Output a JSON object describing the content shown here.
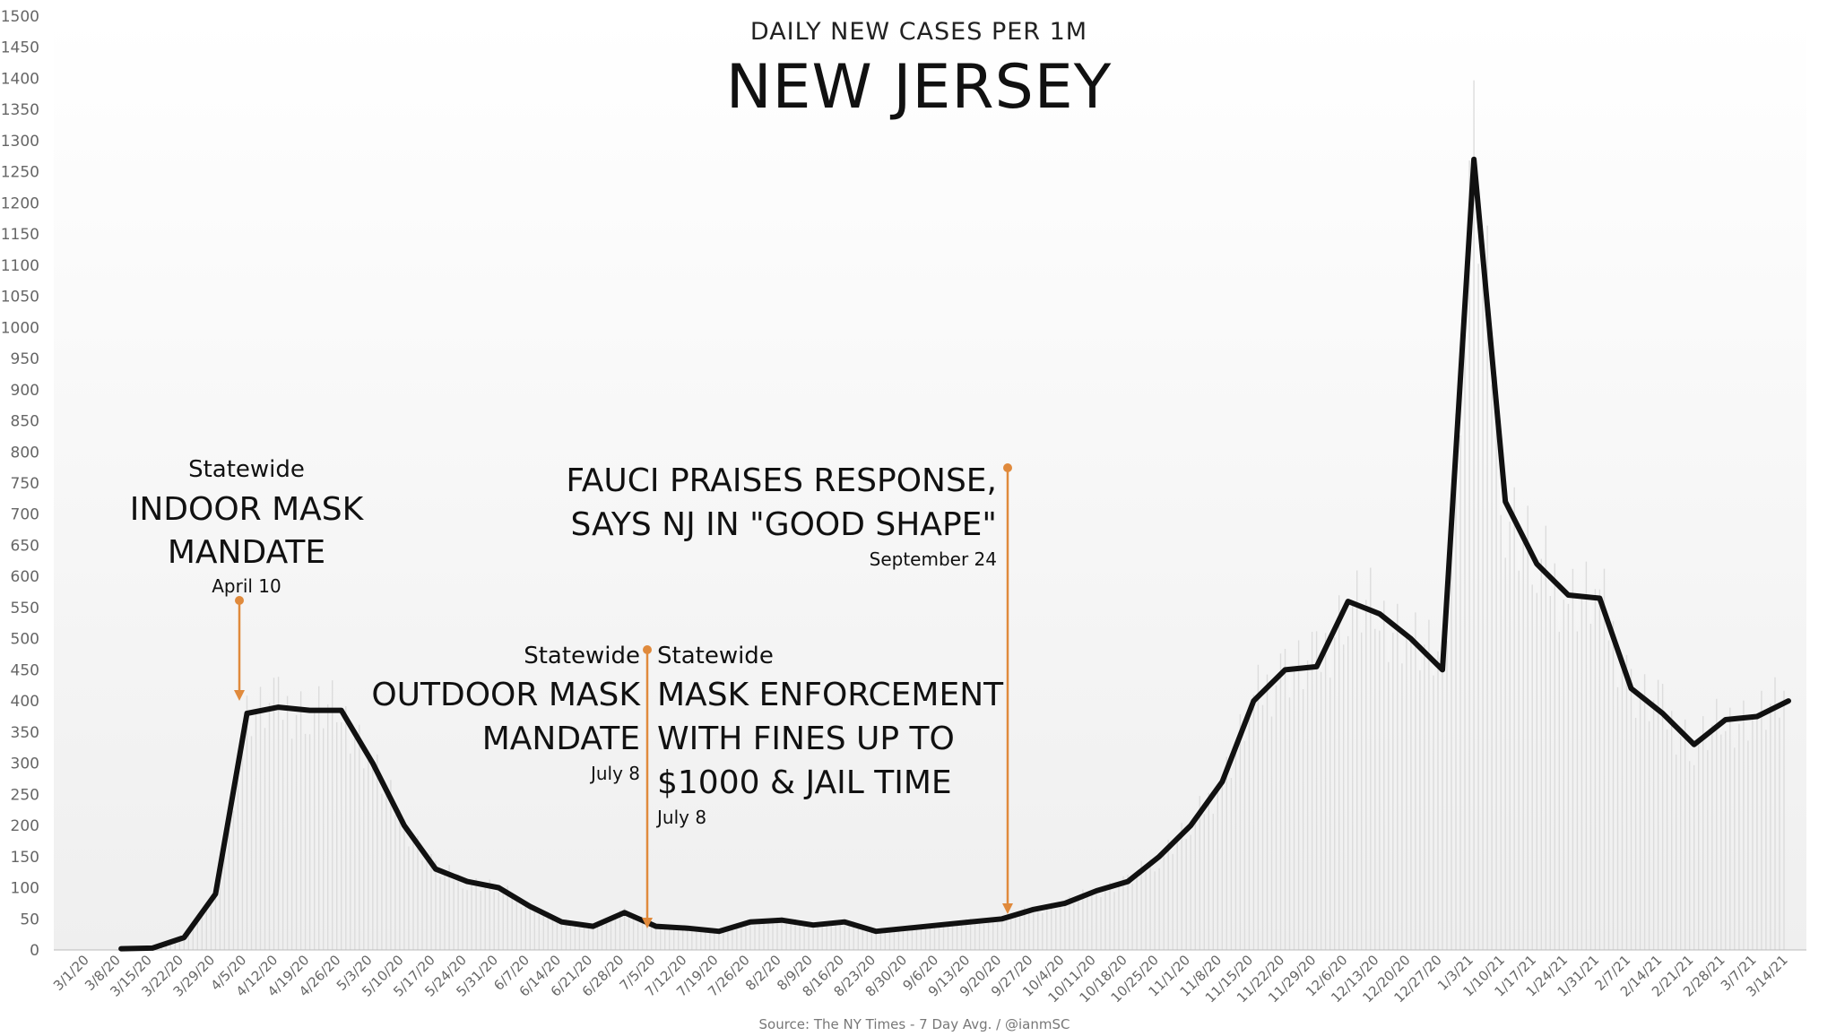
{
  "chart_data": {
    "type": "line",
    "subtitle": "DAILY NEW CASES PER 1M",
    "title": "NEW JERSEY",
    "source": "Source: The NY Times - 7 Day Avg. / @ianmSC",
    "ylim": [
      0,
      1500
    ],
    "y_ticks": [
      "0",
      "50",
      "100",
      "150",
      "200",
      "250",
      "300",
      "350",
      "400",
      "450",
      "500",
      "550",
      "600",
      "650",
      "700",
      "750",
      "800",
      "850",
      "900",
      "950",
      "1000",
      "1050",
      "1100",
      "1150",
      "1200",
      "1250",
      "1300",
      "1350",
      "1400",
      "1450",
      "1500"
    ],
    "x_ticks": [
      "3/1/20",
      "3/8/20",
      "3/15/20",
      "3/22/20",
      "3/29/20",
      "4/5/20",
      "4/12/20",
      "4/19/20",
      "4/26/20",
      "5/3/20",
      "5/10/20",
      "5/17/20",
      "5/24/20",
      "5/31/20",
      "6/7/20",
      "6/14/20",
      "6/21/20",
      "6/28/20",
      "7/5/20",
      "7/12/20",
      "7/19/20",
      "7/26/20",
      "8/2/20",
      "8/9/20",
      "8/16/20",
      "8/23/20",
      "8/30/20",
      "9/6/20",
      "9/13/20",
      "9/20/20",
      "9/27/20",
      "10/4/20",
      "10/11/20",
      "10/18/20",
      "10/25/20",
      "11/1/20",
      "11/8/20",
      "11/15/20",
      "11/22/20",
      "11/29/20",
      "12/6/20",
      "12/13/20",
      "12/20/20",
      "12/27/20",
      "1/3/21",
      "1/10/21",
      "1/17/21",
      "1/24/21",
      "1/31/21",
      "2/7/21",
      "2/14/21",
      "2/21/21",
      "2/28/21",
      "3/7/21",
      "3/14/21"
    ],
    "series": [
      {
        "values_note": "weekly 7-day average, first value at 3/8/20",
        "x": [
          "3/8/20",
          "3/15/20",
          "3/22/20",
          "3/29/20",
          "4/5/20",
          "4/12/20",
          "4/19/20",
          "4/26/20",
          "5/3/20",
          "5/10/20",
          "5/17/20",
          "5/24/20",
          "5/31/20",
          "6/7/20",
          "6/14/20",
          "6/21/20",
          "6/28/20",
          "7/5/20",
          "7/12/20",
          "7/19/20",
          "7/26/20",
          "8/2/20",
          "8/9/20",
          "8/16/20",
          "8/23/20",
          "8/30/20",
          "9/6/20",
          "9/13/20",
          "9/20/20",
          "9/27/20",
          "10/4/20",
          "10/11/20",
          "10/18/20",
          "10/25/20",
          "11/1/20",
          "11/8/20",
          "11/15/20",
          "11/22/20",
          "11/29/20",
          "12/6/20",
          "12/13/20",
          "12/20/20",
          "12/27/20",
          "1/3/21",
          "1/10/21",
          "1/17/21",
          "1/24/21",
          "1/31/21",
          "2/7/21",
          "2/14/21",
          "2/21/21",
          "2/28/21",
          "3/7/21",
          "3/14/21"
        ],
        "values": [
          2,
          3,
          20,
          90,
          380,
          390,
          385,
          385,
          300,
          200,
          130,
          110,
          100,
          70,
          45,
          38,
          60,
          38,
          35,
          30,
          45,
          48,
          40,
          45,
          30,
          35,
          40,
          45,
          50,
          65,
          75,
          95,
          110,
          150,
          200,
          270,
          400,
          450,
          455,
          560,
          540,
          500,
          450,
          1270,
          720,
          620,
          570,
          565,
          420,
          380,
          330,
          370,
          375,
          400
        ]
      }
    ],
    "grid": false,
    "annotations": [
      {
        "small": "Statewide",
        "lines": [
          "INDOOR MASK",
          "MANDATE"
        ],
        "date": "April 10"
      },
      {
        "small": "Statewide",
        "lines": [
          "OUTDOOR MASK",
          "MANDATE"
        ],
        "date": "July 8"
      },
      {
        "small": "Statewide",
        "lines": [
          "MASK ENFORCEMENT",
          "WITH FINES UP TO",
          "$1000 & JAIL TIME"
        ],
        "date": "July 8"
      },
      {
        "small": "",
        "lines": [
          "FAUCI PRAISES RESPONSE,",
          "SAYS NJ IN \"GOOD SHAPE\""
        ],
        "date": "September 24"
      }
    ],
    "colors": {
      "line": "#111111",
      "arrow": "#e08a3c",
      "bars": "#dcdcdc",
      "axis": "#999999"
    }
  }
}
